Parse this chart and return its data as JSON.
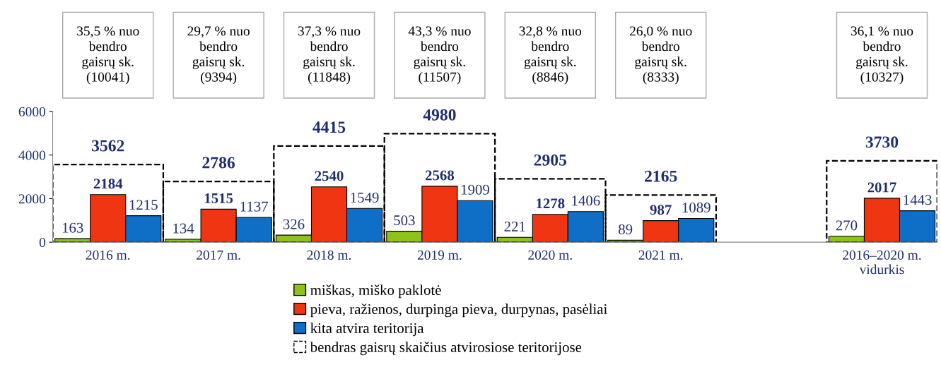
{
  "chart_data": {
    "type": "bar",
    "categories": [
      "2016 m.",
      "2017 m.",
      "2018 m.",
      "2019 m.",
      "2020 m.",
      "2021 m.",
      null,
      "2016–2020 m.\nvidurkis"
    ],
    "series": [
      {
        "name": "miškas, miško paklotė",
        "color": "#8cc21a",
        "values": [
          163,
          134,
          326,
          503,
          221,
          89,
          null,
          270
        ]
      },
      {
        "name": "pieva, ražienos, durpinga pieva, durpynas, pasėliai",
        "color": "#f03512",
        "values": [
          2184,
          1515,
          2540,
          2568,
          1278,
          987,
          null,
          2017
        ]
      },
      {
        "name": "kita atvira teritorija",
        "color": "#0f6fc6",
        "values": [
          1215,
          1137,
          1549,
          1909,
          1406,
          1089,
          null,
          1443
        ]
      },
      {
        "name": "bendras gaisrų skaičius atvirosiose teritorijose",
        "color": "#000000",
        "line_style": "dashed",
        "values": [
          3562,
          2786,
          4415,
          4980,
          2905,
          2165,
          null,
          3730
        ]
      }
    ],
    "ylim": [
      0,
      6000
    ],
    "yticks": [
      0,
      2000,
      4000,
      6000
    ],
    "grid": false,
    "legend": "bottom",
    "data_labels": true,
    "annotations": [
      "35,5 % nuo\nbendro\ngaisrų sk.\n(10041)",
      "29,7 % nuo\nbendro\ngaisrų sk.\n(9394)",
      "37,3 % nuo\nbendro\ngaisrų sk.\n(11848)",
      "43,3 % nuo\nbendro\ngaisrų sk.\n(11507)",
      "32,8 % nuo\nbendro\ngaisrų sk.\n(8846)",
      "26,0 % nuo\nbendro\ngaisrų sk.\n(8333)",
      "36,1 % nuo\nbendro\ngaisrų sk.\n(10327)"
    ]
  }
}
